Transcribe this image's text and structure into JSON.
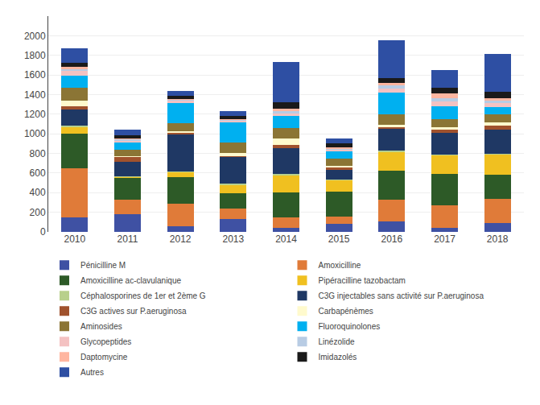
{
  "chart_data": {
    "type": "bar",
    "stacked": true,
    "categories": [
      "2010",
      "2011",
      "2012",
      "2013",
      "2014",
      "2015",
      "2016",
      "2017",
      "2018"
    ],
    "series": [
      {
        "name": "Pénicilline M",
        "color": "#3f51a3",
        "values": [
          150,
          180,
          60,
          130,
          40,
          80,
          110,
          40,
          90
        ]
      },
      {
        "name": "Amoxicilline",
        "color": "#e07b39",
        "values": [
          500,
          150,
          230,
          110,
          110,
          80,
          220,
          230,
          250
        ]
      },
      {
        "name": "Amoxicilline ac-clavulanique",
        "color": "#2d5a27",
        "values": [
          350,
          220,
          270,
          150,
          250,
          250,
          290,
          320,
          240
        ]
      },
      {
        "name": "Pipéracilline tazobactam",
        "color": "#f0c020",
        "values": [
          70,
          10,
          50,
          90,
          180,
          120,
          200,
          190,
          210
        ]
      },
      {
        "name": "Céphalosporines de 1er et 2ème G",
        "color": "#b8d08c",
        "values": [
          10,
          5,
          5,
          10,
          10,
          5,
          10,
          10,
          5
        ]
      },
      {
        "name": "C3G injectables sans activité sur P.aeruginosa",
        "color": "#1f3864",
        "values": [
          170,
          150,
          380,
          280,
          260,
          100,
          220,
          220,
          250
        ]
      },
      {
        "name": "C3G actives sur P.aeruginosa",
        "color": "#a0522d",
        "values": [
          30,
          50,
          15,
          5,
          40,
          20,
          20,
          30,
          40
        ]
      },
      {
        "name": "Carbapénèmes",
        "color": "#fffacd",
        "values": [
          60,
          10,
          20,
          30,
          60,
          20,
          20,
          30,
          30
        ]
      },
      {
        "name": "Aminosides",
        "color": "#8b7535",
        "values": [
          130,
          60,
          80,
          110,
          110,
          70,
          110,
          80,
          80
        ]
      },
      {
        "name": "Fluoroquinolones",
        "color": "#00b0f0",
        "values": [
          120,
          80,
          200,
          200,
          120,
          80,
          220,
          130,
          80
        ]
      },
      {
        "name": "Glycopeptides",
        "color": "#f4c2c2",
        "values": [
          50,
          20,
          30,
          20,
          30,
          15,
          40,
          50,
          40
        ]
      },
      {
        "name": "Linézolide",
        "color": "#b8cce4",
        "values": [
          20,
          10,
          10,
          10,
          20,
          10,
          30,
          30,
          20
        ]
      },
      {
        "name": "Daptomycine",
        "color": "#ffb6a0",
        "values": [
          20,
          10,
          5,
          5,
          30,
          10,
          30,
          50,
          30
        ]
      },
      {
        "name": "Imidazolés",
        "color": "#1a1a1a",
        "values": [
          40,
          30,
          30,
          30,
          60,
          40,
          50,
          60,
          60
        ]
      },
      {
        "name": "Autres",
        "color": "#2e4fa3",
        "values": [
          150,
          60,
          50,
          50,
          410,
          50,
          380,
          180,
          390
        ]
      }
    ],
    "ylim": [
      0,
      2200
    ],
    "yticks": [
      0,
      200,
      400,
      600,
      800,
      1000,
      1200,
      1400,
      1600,
      1800,
      2000
    ],
    "grid": true,
    "legend": "bottom"
  }
}
